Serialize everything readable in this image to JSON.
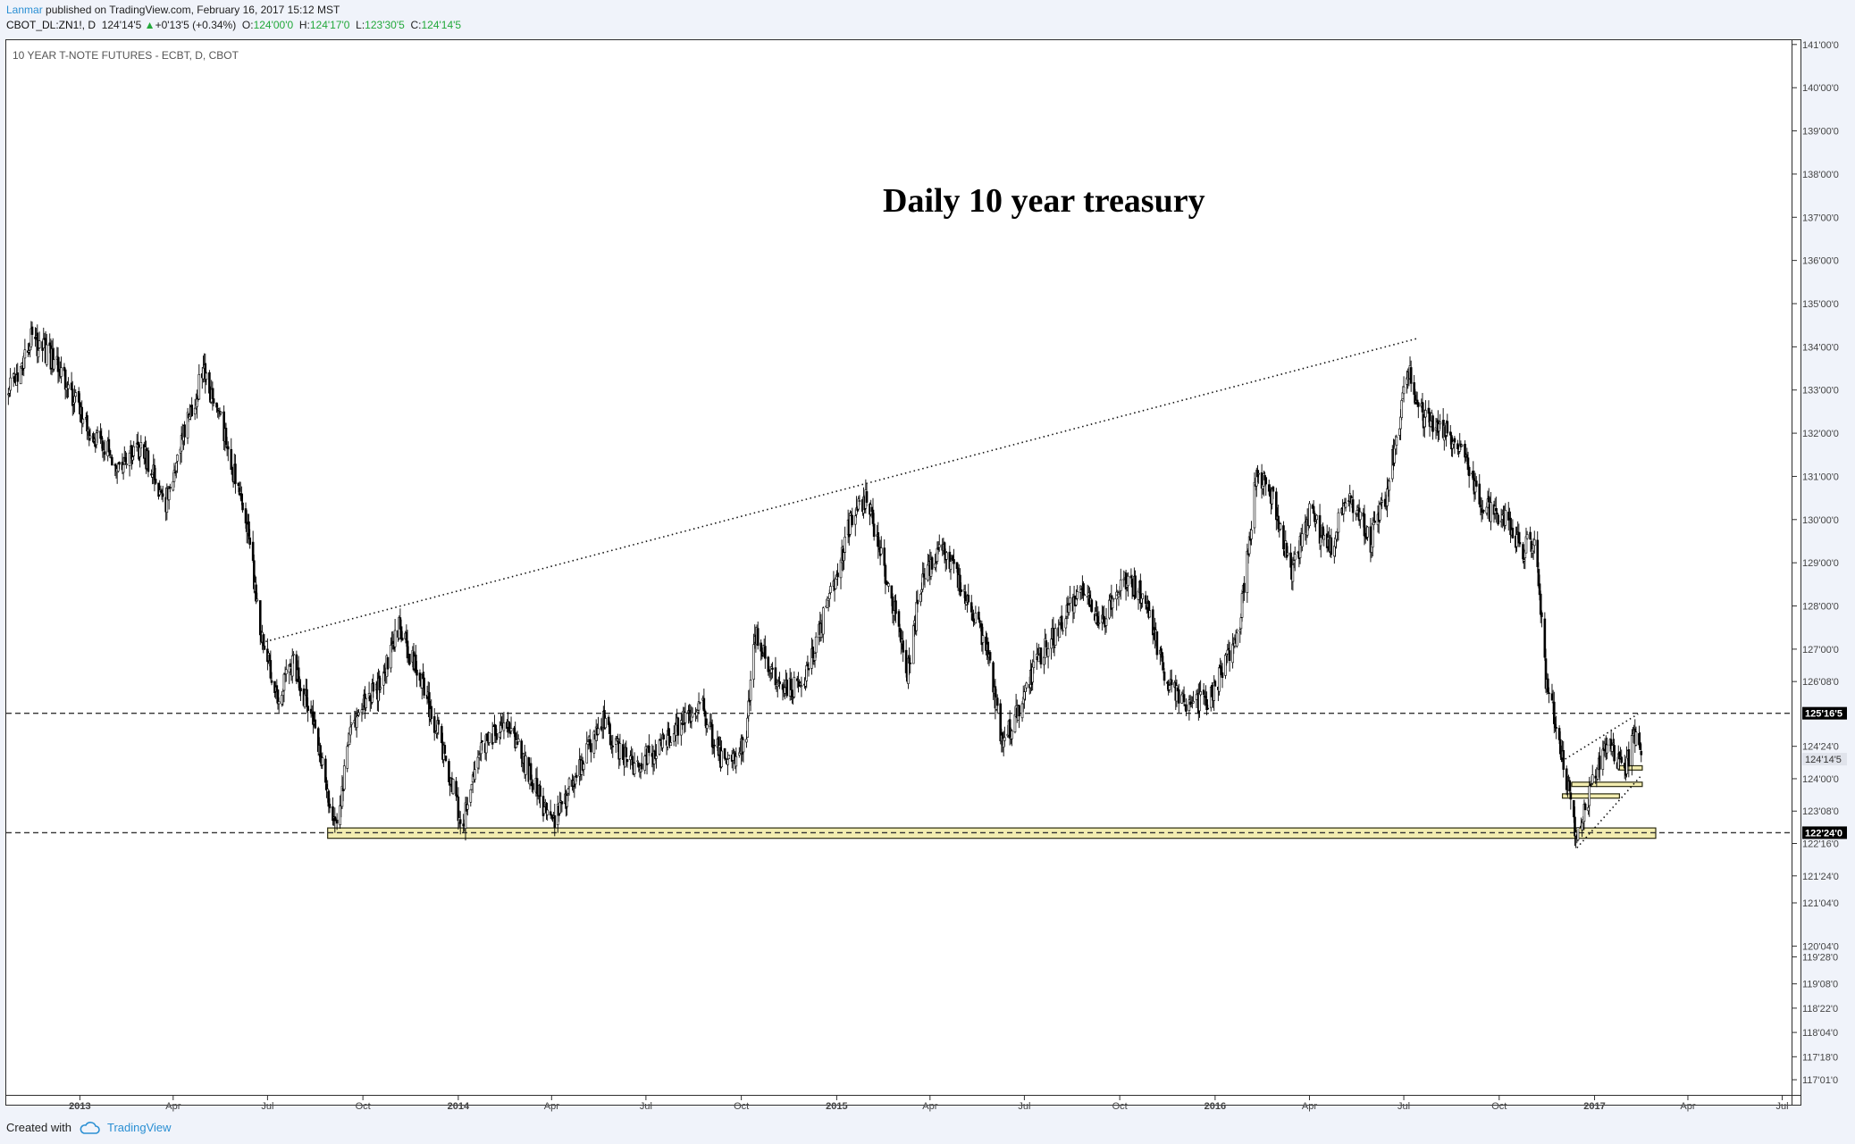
{
  "header": {
    "author": "Lanmar",
    "published_text": "published on TradingView.com, February 16, 2017 15:12 MST",
    "symbol": "CBOT_DL:ZN1!, D",
    "last": "124'14'5",
    "change": "+0'13'5 (+0.34%)",
    "o_label": "O:",
    "o_value": "124'00'0",
    "h_label": "H:",
    "h_value": "124'17'0",
    "l_label": "L:",
    "l_value": "123'30'5",
    "c_label": "C:",
    "c_value": "124'14'5"
  },
  "chart_title": "10 YEAR T-NOTE FUTURES - ECBT, D, CBOT",
  "annotation": "Daily 10 year treasury",
  "footer": {
    "created_with": "Created with",
    "brand": "TradingView"
  },
  "colors": {
    "up": "#22a83a",
    "accent": "#2a8fd3",
    "zone_fill": "#f3edb0",
    "zone_stroke": "#2b2b10",
    "candle": "#000000",
    "label_bg": "#000000",
    "current_label_bg": "#e0e3eb"
  },
  "chart_data": {
    "type": "candlestick",
    "title": "10 YEAR T-NOTE FUTURES - ECBT, D, CBOT",
    "y_unit": "price in points and 32nds (e.g. 123'08'0 = 123 + 8/32)",
    "y_scale": "linear",
    "ylim": [
      116.7,
      141.1
    ],
    "xlim": [
      "2012-10-22",
      "2017-07-10"
    ],
    "y_tick_labels": [
      "141'00'0",
      "140'00'0",
      "139'00'0",
      "138'00'0",
      "137'00'0",
      "136'00'0",
      "135'00'0",
      "134'00'0",
      "133'00'0",
      "132'00'0",
      "131'00'0",
      "130'00'0",
      "129'00'0",
      "128'00'0",
      "127'00'0",
      "126'08'0",
      "124'24'0",
      "124'00'0",
      "123'08'0",
      "122'16'0",
      "121'24'0",
      "121'04'0",
      "120'04'0",
      "119'28'0",
      "119'08'0",
      "118'22'0",
      "118'04'0",
      "117'18'0",
      "117'01'0"
    ],
    "y_tick_values": [
      141,
      140,
      139,
      138,
      137,
      136,
      135,
      134,
      133,
      132,
      131,
      130,
      129,
      128,
      127,
      126.25,
      124.75,
      124,
      123.25,
      122.5,
      121.75,
      121.125,
      120.125,
      119.875,
      119.25,
      118.6875,
      118.125,
      117.5625,
      117.03
    ],
    "x_tick_labels": [
      {
        "label": "2013",
        "date": "2013-01-01",
        "bold": true
      },
      {
        "label": "Apr",
        "date": "2013-04-01",
        "bold": false
      },
      {
        "label": "Jul",
        "date": "2013-07-01",
        "bold": false
      },
      {
        "label": "Oct",
        "date": "2013-10-01",
        "bold": false
      },
      {
        "label": "2014",
        "date": "2014-01-01",
        "bold": true
      },
      {
        "label": "Apr",
        "date": "2014-04-01",
        "bold": false
      },
      {
        "label": "Jul",
        "date": "2014-07-01",
        "bold": false
      },
      {
        "label": "Oct",
        "date": "2014-10-01",
        "bold": false
      },
      {
        "label": "2015",
        "date": "2015-01-01",
        "bold": true
      },
      {
        "label": "Apr",
        "date": "2015-04-01",
        "bold": false
      },
      {
        "label": "Jul",
        "date": "2015-07-01",
        "bold": false
      },
      {
        "label": "Oct",
        "date": "2015-10-01",
        "bold": false
      },
      {
        "label": "2016",
        "date": "2016-01-01",
        "bold": true
      },
      {
        "label": "Apr",
        "date": "2016-04-01",
        "bold": false
      },
      {
        "label": "Jul",
        "date": "2016-07-01",
        "bold": false
      },
      {
        "label": "Oct",
        "date": "2016-10-01",
        "bold": false
      },
      {
        "label": "2017",
        "date": "2017-01-01",
        "bold": true
      },
      {
        "label": "Apr",
        "date": "2017-04-01",
        "bold": false
      },
      {
        "label": "Jul",
        "date": "2017-07-01",
        "bold": false
      }
    ],
    "approx_closes": [
      [
        "2012-10-24",
        132.9
      ],
      [
        "2012-11-15",
        134.2
      ],
      [
        "2012-12-10",
        133.6
      ],
      [
        "2013-01-10",
        132.1
      ],
      [
        "2013-02-05",
        131.3
      ],
      [
        "2013-03-01",
        131.7
      ],
      [
        "2013-03-25",
        130.4
      ],
      [
        "2013-04-15",
        132.3
      ],
      [
        "2013-05-01",
        133.5
      ],
      [
        "2013-05-20",
        132.0
      ],
      [
        "2013-06-10",
        130.0
      ],
      [
        "2013-06-25",
        127.4
      ],
      [
        "2013-07-10",
        125.8
      ],
      [
        "2013-07-25",
        126.7
      ],
      [
        "2013-08-15",
        125.3
      ],
      [
        "2013-09-05",
        122.8
      ],
      [
        "2013-09-20",
        125.3
      ],
      [
        "2013-10-15",
        126.1
      ],
      [
        "2013-11-05",
        127.5
      ],
      [
        "2013-11-25",
        126.3
      ],
      [
        "2013-12-15",
        124.9
      ],
      [
        "2014-01-05",
        122.9
      ],
      [
        "2014-01-25",
        124.8
      ],
      [
        "2014-02-15",
        125.3
      ],
      [
        "2014-03-10",
        124.2
      ],
      [
        "2014-04-02",
        122.9
      ],
      [
        "2014-04-25",
        124.1
      ],
      [
        "2014-05-20",
        125.4
      ],
      [
        "2014-06-15",
        124.3
      ],
      [
        "2014-07-10",
        124.6
      ],
      [
        "2014-08-05",
        125.4
      ],
      [
        "2014-08-25",
        125.6
      ],
      [
        "2014-09-15",
        124.2
      ],
      [
        "2014-10-05",
        124.8
      ],
      [
        "2014-10-15",
        127.4
      ],
      [
        "2014-11-05",
        126.0
      ],
      [
        "2014-12-01",
        126.2
      ],
      [
        "2014-12-25",
        128.2
      ],
      [
        "2015-01-15",
        130.0
      ],
      [
        "2015-01-30",
        130.5
      ],
      [
        "2015-02-20",
        128.5
      ],
      [
        "2015-03-10",
        126.5
      ],
      [
        "2015-03-25",
        128.7
      ],
      [
        "2015-04-15",
        129.4
      ],
      [
        "2015-05-05",
        128.2
      ],
      [
        "2015-05-25",
        127.1
      ],
      [
        "2015-06-10",
        124.8
      ],
      [
        "2015-06-25",
        125.6
      ],
      [
        "2015-07-15",
        126.8
      ],
      [
        "2015-08-10",
        127.7
      ],
      [
        "2015-08-25",
        128.5
      ],
      [
        "2015-09-15",
        127.6
      ],
      [
        "2015-10-05",
        128.7
      ],
      [
        "2015-10-25",
        128.2
      ],
      [
        "2015-11-15",
        126.3
      ],
      [
        "2015-12-05",
        125.7
      ],
      [
        "2015-12-25",
        125.8
      ],
      [
        "2016-01-10",
        126.6
      ],
      [
        "2016-01-25",
        127.7
      ],
      [
        "2016-02-10",
        131.0
      ],
      [
        "2016-02-25",
        130.6
      ],
      [
        "2016-03-15",
        128.7
      ],
      [
        "2016-04-01",
        130.2
      ],
      [
        "2016-04-20",
        129.3
      ],
      [
        "2016-05-10",
        130.6
      ],
      [
        "2016-05-30",
        129.5
      ],
      [
        "2016-06-15",
        130.7
      ],
      [
        "2016-06-28",
        132.5
      ],
      [
        "2016-07-06",
        133.4
      ],
      [
        "2016-07-20",
        132.3
      ],
      [
        "2016-08-10",
        132.1
      ],
      [
        "2016-08-30",
        131.4
      ],
      [
        "2016-09-15",
        130.3
      ],
      [
        "2016-10-05",
        130.1
      ],
      [
        "2016-10-25",
        129.3
      ],
      [
        "2016-11-05",
        129.6
      ],
      [
        "2016-11-15",
        126.3
      ],
      [
        "2016-11-30",
        124.6
      ],
      [
        "2016-12-15",
        122.6
      ],
      [
        "2016-12-30",
        123.9
      ],
      [
        "2017-01-15",
        124.8
      ],
      [
        "2017-01-30",
        124.2
      ],
      [
        "2017-02-08",
        125.0
      ],
      [
        "2017-02-16",
        124.45
      ]
    ],
    "horizontal_lines": [
      {
        "price": 125.515625,
        "label": "125'16'5",
        "style": "dashed"
      },
      {
        "price": 122.75,
        "label": "122'24'0",
        "style": "dashed"
      }
    ],
    "current_price": {
      "price": 124.453125,
      "label": "124'14'5"
    },
    "trendlines": [
      {
        "from": [
          "2013-06-25",
          127.15
        ],
        "to": [
          "2016-07-15",
          134.2
        ],
        "style": "dotted"
      },
      {
        "from": [
          "2016-11-30",
          124.4
        ],
        "to": [
          "2017-02-12",
          125.5
        ],
        "style": "dotted"
      },
      {
        "from": [
          "2016-12-15",
          122.4
        ],
        "to": [
          "2017-02-16",
          124.1
        ],
        "style": "dotted"
      }
    ],
    "zones": [
      {
        "from": "2013-08-28",
        "to": "2017-03-01",
        "low": 122.62,
        "high": 122.86
      },
      {
        "from": "2016-12-01",
        "to": "2017-01-25",
        "low": 123.55,
        "high": 123.65
      },
      {
        "from": "2016-12-10",
        "to": "2017-02-16",
        "low": 123.82,
        "high": 123.92
      },
      {
        "from": "2017-01-25",
        "to": "2017-02-16",
        "low": 124.2,
        "high": 124.3
      }
    ],
    "grid": false,
    "legend": "none"
  }
}
